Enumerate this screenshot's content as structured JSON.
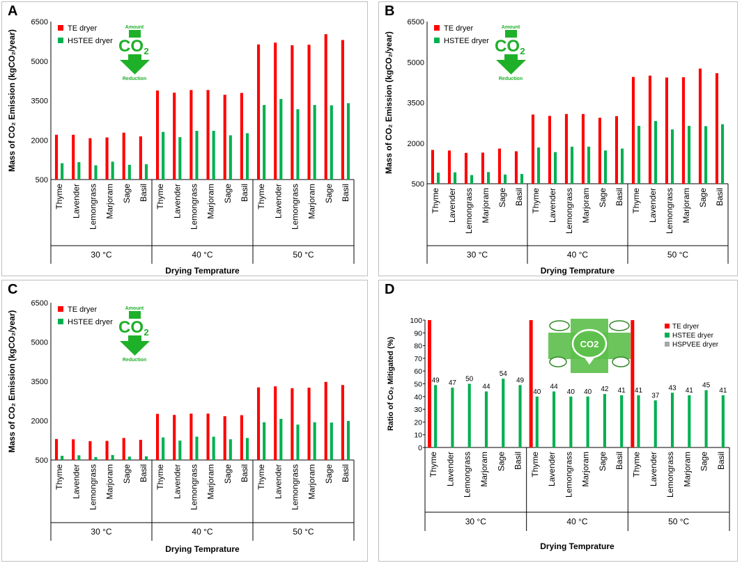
{
  "colors": {
    "te": "#ff0000",
    "hstee": "#00b050",
    "hspvee": "#a6a6a6",
    "co2_green": "#1fb02a"
  },
  "co2_logo": {
    "amount": "Amount",
    "co2": "CO",
    "sub": "2",
    "reduction": "Reduction"
  },
  "chart_data": [
    {
      "panel": "A",
      "type": "bar",
      "ylabel": "Mass of CO₂ Emission (kgCO₂/year)",
      "xlabel": "Drying Temprature",
      "groups": [
        "30 °C",
        "40 °C",
        "50 °C"
      ],
      "herbs": [
        "Thyme",
        "Lavender",
        "Lemongrass",
        "Marjoram",
        "Sage",
        "Basil"
      ],
      "ylim": [
        500,
        6500
      ],
      "yticks": [
        500,
        2000,
        3500,
        5000,
        6500
      ],
      "series": [
        {
          "name": "TE dryer",
          "values": [
            2200,
            2200,
            2070,
            2100,
            2280,
            2140,
            3880,
            3800,
            3900,
            3900,
            3720,
            3790,
            5630,
            5700,
            5600,
            5620,
            6020,
            5800
          ]
        },
        {
          "name": "HSTEE dryer",
          "values": [
            1120,
            1160,
            1040,
            1180,
            1060,
            1080,
            2310,
            2110,
            2350,
            2350,
            2180,
            2260,
            3330,
            3560,
            3170,
            3330,
            3320,
            3400
          ]
        }
      ],
      "legend": [
        "TE dryer",
        "HSTEE dryer"
      ]
    },
    {
      "panel": "B",
      "type": "bar",
      "ylabel": "Mass of CO₂ Emission (kgCO₂/year)",
      "xlabel": "Drying Temprature",
      "groups": [
        "30 °C",
        "40 °C",
        "50 °C"
      ],
      "herbs": [
        "Thyme",
        "Lavender",
        "Lemongrass",
        "Marjoram",
        "Sage",
        "Basil"
      ],
      "ylim": [
        500,
        6500
      ],
      "yticks": [
        500,
        2000,
        3500,
        5000,
        6500
      ],
      "series": [
        {
          "name": "TE dryer",
          "values": [
            1750,
            1730,
            1640,
            1650,
            1800,
            1700,
            3060,
            3010,
            3080,
            3080,
            2940,
            3000,
            4450,
            4500,
            4430,
            4440,
            4760,
            4590
          ]
        },
        {
          "name": "HSTEE dryer",
          "values": [
            910,
            920,
            820,
            930,
            840,
            860,
            1840,
            1670,
            1870,
            1870,
            1730,
            1800,
            2640,
            2820,
            2510,
            2640,
            2630,
            2700
          ]
        }
      ],
      "legend": [
        "TE dryer",
        "HSTEE dryer"
      ]
    },
    {
      "panel": "C",
      "type": "bar",
      "ylabel": "Mass of CO₂ Emission (kgCO₂/year)",
      "xlabel": "Drying Temprature",
      "groups": [
        "30 °C",
        "40 °C",
        "50 °C"
      ],
      "herbs": [
        "Thyme",
        "Lavender",
        "Lemongrass",
        "Marjoram",
        "Sage",
        "Basil"
      ],
      "ylim": [
        500,
        6500
      ],
      "yticks": [
        500,
        2000,
        3500,
        5000,
        6500
      ],
      "series": [
        {
          "name": "TE dryer",
          "values": [
            1300,
            1290,
            1220,
            1230,
            1340,
            1270,
            2260,
            2220,
            2270,
            2270,
            2170,
            2210,
            3270,
            3310,
            3240,
            3260,
            3480,
            3360
          ]
        },
        {
          "name": "HSTEE dryer",
          "values": [
            660,
            680,
            610,
            690,
            630,
            640,
            1360,
            1240,
            1390,
            1390,
            1290,
            1340,
            1940,
            2070,
            1850,
            1940,
            1930,
            1990
          ]
        }
      ],
      "legend": [
        "TE dryer",
        "HSTEE dryer"
      ]
    },
    {
      "panel": "D",
      "type": "bar",
      "ylabel": "Ratio of Co₂ Mitigated (%)",
      "xlabel": "Drying Temprature",
      "groups": [
        "30 °C",
        "40 °C",
        "50 °C"
      ],
      "herbs": [
        "Thyme",
        "Lavender",
        "Lemongrass",
        "Marjoram",
        "Sage",
        "Basil"
      ],
      "ylim": [
        0,
        100
      ],
      "yticks": [
        0,
        10,
        20,
        30,
        40,
        50,
        60,
        70,
        80,
        90,
        100
      ],
      "te_values": [
        100,
        100,
        100
      ],
      "series": [
        {
          "name": "HSTEE dryer",
          "values": [
            49,
            47,
            50,
            44,
            54,
            49,
            40,
            44,
            40,
            40,
            42,
            41,
            41,
            37,
            43,
            41,
            45,
            41
          ]
        }
      ],
      "labels": [
        "49",
        "47",
        "50",
        "44",
        "54",
        "49",
        "40",
        "44",
        "40",
        "40",
        "42",
        "41",
        "41",
        "37",
        "43",
        "41",
        "45",
        "41"
      ],
      "legend": [
        "TE dryer",
        "HSTEE dryer",
        "HSPVEE dryer"
      ]
    }
  ]
}
